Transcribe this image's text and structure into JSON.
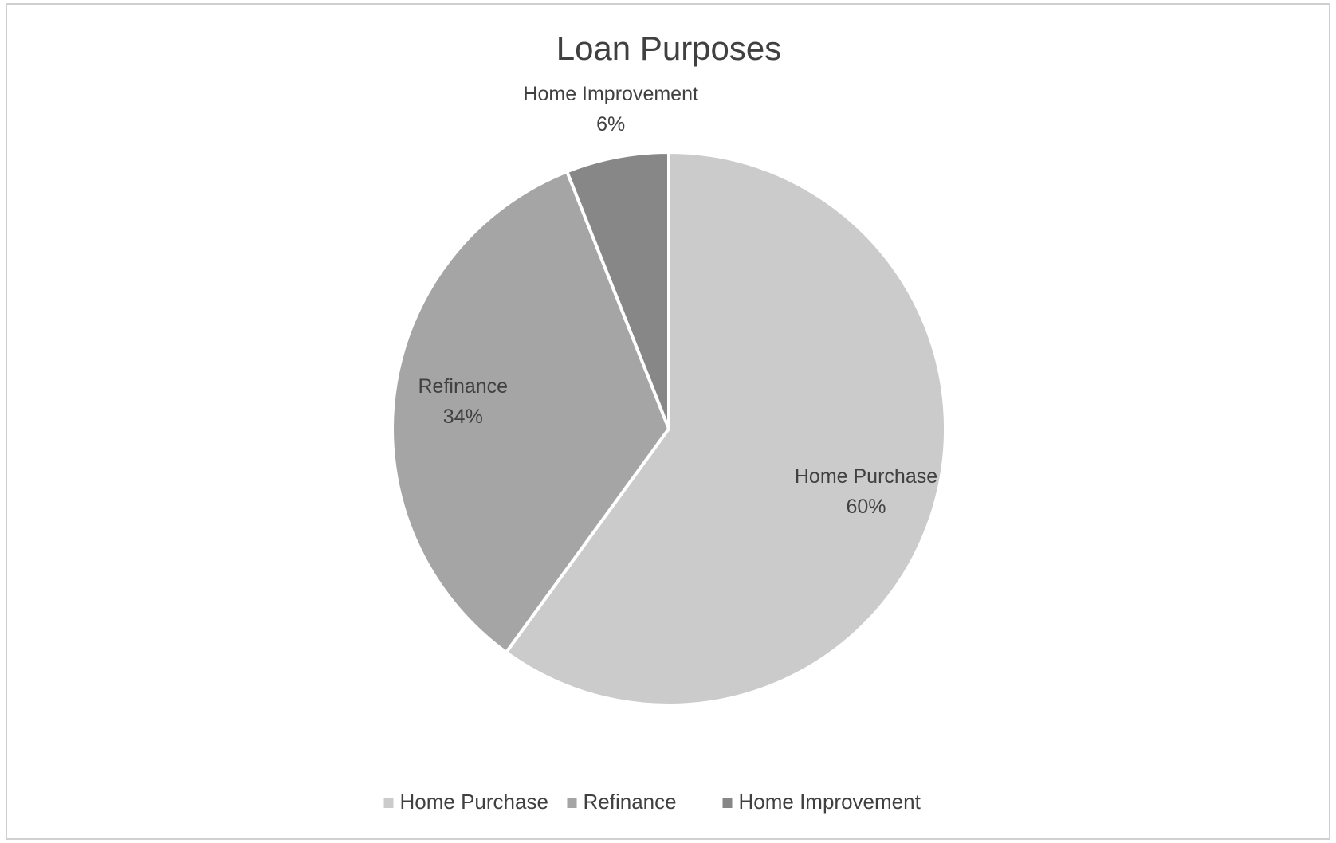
{
  "chart_data": {
    "type": "pie",
    "title": "Loan Purposes",
    "categories": [
      "Home Purchase",
      "Refinance",
      "Home Improvement"
    ],
    "values": [
      60,
      34,
      6
    ],
    "value_labels": [
      "60%",
      "34%",
      "6%"
    ],
    "colors": [
      "#cbcbcb",
      "#a5a5a5",
      "#878787"
    ],
    "legend": "bottom"
  }
}
